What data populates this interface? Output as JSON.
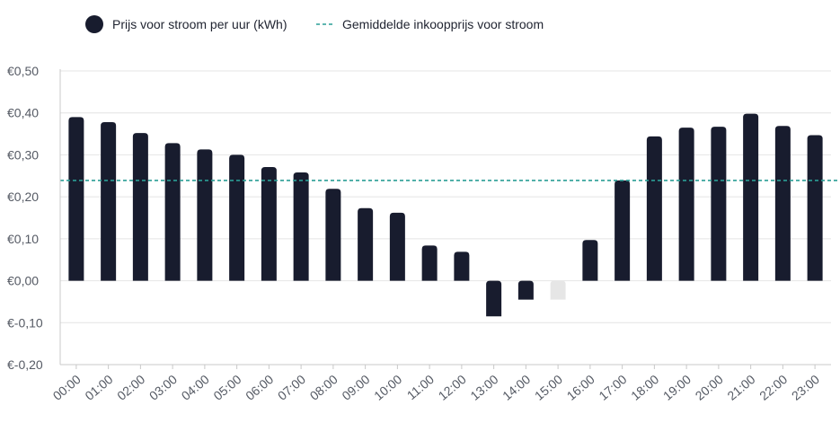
{
  "chart_data": {
    "type": "bar",
    "title": "",
    "xlabel": "",
    "ylabel": "",
    "categories": [
      "00:00",
      "01:00",
      "02:00",
      "03:00",
      "04:00",
      "05:00",
      "06:00",
      "07:00",
      "08:00",
      "09:00",
      "10:00",
      "11:00",
      "12:00",
      "13:00",
      "14:00",
      "15:00",
      "16:00",
      "17:00",
      "18:00",
      "19:00",
      "20:00",
      "21:00",
      "22:00",
      "23:00"
    ],
    "values": [
      0.39,
      0.378,
      0.352,
      0.328,
      0.313,
      0.3,
      0.271,
      0.258,
      0.219,
      0.173,
      0.162,
      0.084,
      0.069,
      -0.085,
      -0.045,
      -0.045,
      0.097,
      0.239,
      0.344,
      0.365,
      0.367,
      0.398,
      0.369,
      0.347
    ],
    "highlight_index": 15,
    "average_line": 0.239,
    "ylim": [
      -0.2,
      0.5
    ],
    "yticks": [
      0.5,
      0.4,
      0.3,
      0.2,
      0.1,
      0.0,
      -0.1,
      -0.2
    ],
    "ytick_labels": [
      "€0,50",
      "€0,40",
      "€0,30",
      "€0,20",
      "€0,10",
      "€0,00",
      "€-0,10",
      "€-0,20"
    ],
    "grid": true,
    "legend_position": "top-left",
    "legend": {
      "bars": "Prijs voor stroom per uur (kWh)",
      "average": "Gemiddelde inkoopprijs voor stroom"
    },
    "colors": {
      "bar": "#181c2e",
      "bar_highlight": "#e6e6e6",
      "average_line": "#2a9d95",
      "grid": "#e4e4e4",
      "axis": "#c8c8c8"
    }
  }
}
